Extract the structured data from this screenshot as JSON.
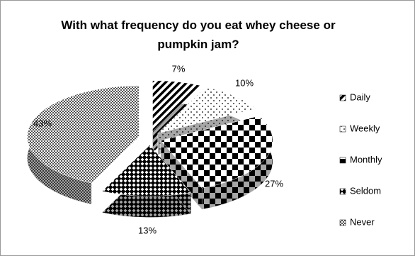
{
  "chart_data": {
    "type": "pie",
    "title": "With what frequency do you eat whey cheese or pumpkin jam?",
    "categories": [
      "Daily",
      "Weekly",
      "Monthly",
      "Seldom",
      "Never"
    ],
    "values": [
      7,
      10,
      27,
      13,
      43
    ],
    "value_labels": [
      "7%",
      "10%",
      "27%",
      "13%",
      "43%"
    ],
    "legend": "right"
  }
}
